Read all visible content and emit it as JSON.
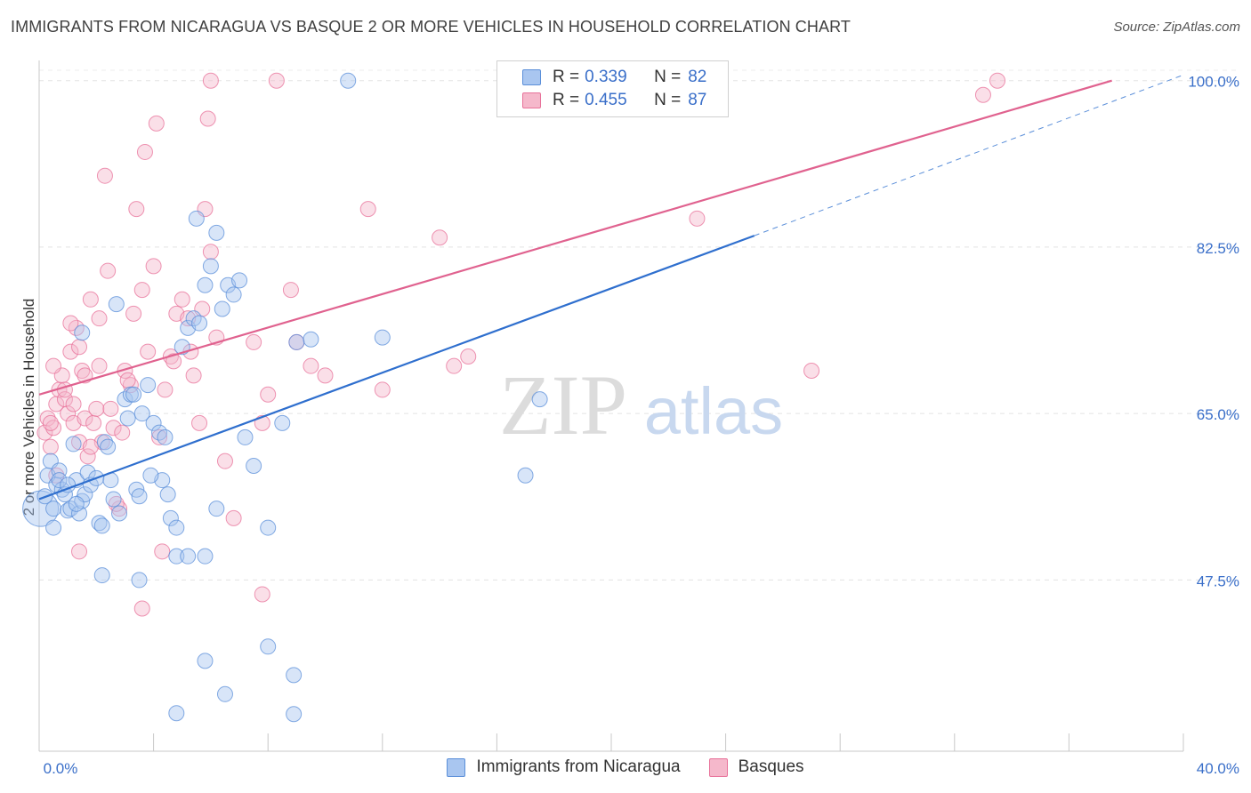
{
  "title": "IMMIGRANTS FROM NICARAGUA VS BASQUE 2 OR MORE VEHICLES IN HOUSEHOLD CORRELATION CHART",
  "source": "Source: ZipAtlas.com",
  "watermark": {
    "zip": "ZIP",
    "atlas": "atlas"
  },
  "legend": {
    "r_label": "R =",
    "n_label": "N =",
    "series": [
      {
        "r": "0.339",
        "n": "82"
      },
      {
        "r": "0.455",
        "n": "87"
      }
    ]
  },
  "chart_data": {
    "type": "scatter",
    "title": "IMMIGRANTS FROM NICARAGUA VS BASQUE 2 OR MORE VEHICLES IN HOUSEHOLD CORRELATION CHART",
    "xlabel": "",
    "ylabel": "2 or more Vehicles in Household",
    "xlim": [
      0,
      40
    ],
    "ylim": [
      29.5,
      101.0
    ],
    "x_tick_labels": [
      "0.0%",
      "40.0%"
    ],
    "y_ticks": [
      47.5,
      65.0,
      82.5,
      100.0
    ],
    "y_tick_labels": [
      "47.5%",
      "65.0%",
      "82.5%",
      "100.0%"
    ],
    "legend_position": "top-center",
    "series": [
      {
        "name": "Immigrants from Nicaragua",
        "color": "#5b8fd9",
        "fill": "#a9c6f0",
        "trendline": {
          "x": [
            0,
            25.0
          ],
          "y": [
            56.0,
            83.7
          ],
          "dashed_to": {
            "x": 40,
            "y": 100.6
          }
        },
        "points": [
          {
            "x": 0.05,
            "y": 55.0,
            "big": true
          },
          {
            "x": 0.2,
            "y": 56.3
          },
          {
            "x": 0.3,
            "y": 58.5
          },
          {
            "x": 0.4,
            "y": 60.0
          },
          {
            "x": 0.5,
            "y": 55.0
          },
          {
            "x": 0.6,
            "y": 57.5
          },
          {
            "x": 0.7,
            "y": 59.0
          },
          {
            "x": 0.8,
            "y": 57.0
          },
          {
            "x": 0.9,
            "y": 56.5
          },
          {
            "x": 1.0,
            "y": 54.8
          },
          {
            "x": 1.1,
            "y": 55.0
          },
          {
            "x": 1.2,
            "y": 61.8
          },
          {
            "x": 1.3,
            "y": 58.0
          },
          {
            "x": 1.4,
            "y": 54.5
          },
          {
            "x": 1.5,
            "y": 55.8
          },
          {
            "x": 1.6,
            "y": 56.5
          },
          {
            "x": 1.7,
            "y": 58.8
          },
          {
            "x": 1.8,
            "y": 57.5
          },
          {
            "x": 2.0,
            "y": 58.2
          },
          {
            "x": 2.1,
            "y": 53.5
          },
          {
            "x": 2.2,
            "y": 53.2
          },
          {
            "x": 2.3,
            "y": 62.0
          },
          {
            "x": 2.4,
            "y": 61.5
          },
          {
            "x": 2.5,
            "y": 58.0
          },
          {
            "x": 2.6,
            "y": 56.0
          },
          {
            "x": 2.8,
            "y": 54.5
          },
          {
            "x": 3.0,
            "y": 66.5
          },
          {
            "x": 3.1,
            "y": 64.5
          },
          {
            "x": 3.2,
            "y": 67.0
          },
          {
            "x": 3.4,
            "y": 57.0
          },
          {
            "x": 3.5,
            "y": 56.3
          },
          {
            "x": 3.6,
            "y": 65.0
          },
          {
            "x": 3.8,
            "y": 68.0
          },
          {
            "x": 4.0,
            "y": 64.0
          },
          {
            "x": 4.2,
            "y": 63.0
          },
          {
            "x": 4.3,
            "y": 58.0
          },
          {
            "x": 4.5,
            "y": 56.5
          },
          {
            "x": 4.6,
            "y": 54.0
          },
          {
            "x": 4.8,
            "y": 53.0
          },
          {
            "x": 5.0,
            "y": 72.0
          },
          {
            "x": 5.2,
            "y": 74.0
          },
          {
            "x": 5.4,
            "y": 75.0
          },
          {
            "x": 5.6,
            "y": 74.5
          },
          {
            "x": 5.8,
            "y": 78.5
          },
          {
            "x": 6.0,
            "y": 80.5
          },
          {
            "x": 6.2,
            "y": 84.0
          },
          {
            "x": 6.4,
            "y": 76.0
          },
          {
            "x": 6.6,
            "y": 78.5
          },
          {
            "x": 6.8,
            "y": 77.5
          },
          {
            "x": 5.5,
            "y": 85.5
          },
          {
            "x": 7.0,
            "y": 79.0
          },
          {
            "x": 7.2,
            "y": 62.5
          },
          {
            "x": 7.5,
            "y": 59.5
          },
          {
            "x": 8.0,
            "y": 53.0
          },
          {
            "x": 8.5,
            "y": 64.0
          },
          {
            "x": 9.0,
            "y": 72.5
          },
          {
            "x": 9.5,
            "y": 72.8
          },
          {
            "x": 10.8,
            "y": 100.0
          },
          {
            "x": 12.0,
            "y": 73.0
          },
          {
            "x": 17.0,
            "y": 58.5
          },
          {
            "x": 17.5,
            "y": 66.5
          },
          {
            "x": 1.5,
            "y": 73.5
          },
          {
            "x": 2.7,
            "y": 76.5
          },
          {
            "x": 3.3,
            "y": 67.0
          },
          {
            "x": 4.4,
            "y": 62.5
          },
          {
            "x": 2.2,
            "y": 48.0
          },
          {
            "x": 3.5,
            "y": 47.5
          },
          {
            "x": 4.8,
            "y": 50.0
          },
          {
            "x": 5.2,
            "y": 50.0
          },
          {
            "x": 5.8,
            "y": 50.0
          },
          {
            "x": 5.8,
            "y": 39.0
          },
          {
            "x": 8.0,
            "y": 40.5
          },
          {
            "x": 8.9,
            "y": 37.5
          },
          {
            "x": 6.5,
            "y": 35.5
          },
          {
            "x": 4.8,
            "y": 33.5
          },
          {
            "x": 8.9,
            "y": 33.4
          },
          {
            "x": 0.5,
            "y": 53.0
          },
          {
            "x": 0.7,
            "y": 58.0
          },
          {
            "x": 1.0,
            "y": 57.5
          },
          {
            "x": 1.3,
            "y": 55.5
          },
          {
            "x": 6.2,
            "y": 55.0
          },
          {
            "x": 3.9,
            "y": 58.5
          }
        ]
      },
      {
        "name": "Basques",
        "color": "#e8729a",
        "fill": "#f5b8cb",
        "trendline": {
          "x": [
            0,
            37.5
          ],
          "y": [
            67.0,
            100.0
          ]
        },
        "points": [
          {
            "x": 0.2,
            "y": 63.0
          },
          {
            "x": 0.3,
            "y": 64.5
          },
          {
            "x": 0.4,
            "y": 61.5
          },
          {
            "x": 0.5,
            "y": 63.5
          },
          {
            "x": 0.6,
            "y": 66.0
          },
          {
            "x": 0.7,
            "y": 67.5
          },
          {
            "x": 0.8,
            "y": 69.0
          },
          {
            "x": 0.9,
            "y": 66.5
          },
          {
            "x": 1.0,
            "y": 65.0
          },
          {
            "x": 1.1,
            "y": 71.5
          },
          {
            "x": 1.2,
            "y": 64.0
          },
          {
            "x": 1.3,
            "y": 74.0
          },
          {
            "x": 1.4,
            "y": 72.0
          },
          {
            "x": 1.5,
            "y": 69.5
          },
          {
            "x": 1.6,
            "y": 64.5
          },
          {
            "x": 1.7,
            "y": 60.5
          },
          {
            "x": 1.8,
            "y": 77.0
          },
          {
            "x": 1.9,
            "y": 64.0
          },
          {
            "x": 2.0,
            "y": 65.5
          },
          {
            "x": 2.1,
            "y": 75.0
          },
          {
            "x": 2.2,
            "y": 62.0
          },
          {
            "x": 2.4,
            "y": 80.0
          },
          {
            "x": 2.6,
            "y": 63.5
          },
          {
            "x": 2.8,
            "y": 55.0
          },
          {
            "x": 3.0,
            "y": 69.5
          },
          {
            "x": 3.2,
            "y": 68.0
          },
          {
            "x": 3.4,
            "y": 86.5
          },
          {
            "x": 3.6,
            "y": 78.0
          },
          {
            "x": 3.8,
            "y": 71.5
          },
          {
            "x": 4.0,
            "y": 80.5
          },
          {
            "x": 4.2,
            "y": 62.5
          },
          {
            "x": 4.4,
            "y": 67.5
          },
          {
            "x": 4.6,
            "y": 71.0
          },
          {
            "x": 4.8,
            "y": 75.5
          },
          {
            "x": 5.0,
            "y": 77.0
          },
          {
            "x": 5.2,
            "y": 75.0
          },
          {
            "x": 5.4,
            "y": 69.0
          },
          {
            "x": 5.6,
            "y": 64.0
          },
          {
            "x": 5.8,
            "y": 86.5
          },
          {
            "x": 6.0,
            "y": 82.0
          },
          {
            "x": 6.2,
            "y": 73.0
          },
          {
            "x": 6.5,
            "y": 60.0
          },
          {
            "x": 6.8,
            "y": 54.0
          },
          {
            "x": 7.5,
            "y": 72.5
          },
          {
            "x": 8.0,
            "y": 67.0
          },
          {
            "x": 8.8,
            "y": 78.0
          },
          {
            "x": 9.5,
            "y": 70.0
          },
          {
            "x": 10.0,
            "y": 69.0
          },
          {
            "x": 11.5,
            "y": 86.5
          },
          {
            "x": 12.0,
            "y": 67.5
          },
          {
            "x": 14.0,
            "y": 83.5
          },
          {
            "x": 14.5,
            "y": 70.0
          },
          {
            "x": 15.0,
            "y": 71.0
          },
          {
            "x": 23.0,
            "y": 85.5
          },
          {
            "x": 27.0,
            "y": 69.5
          },
          {
            "x": 33.0,
            "y": 98.5
          },
          {
            "x": 33.5,
            "y": 100.0
          },
          {
            "x": 6.0,
            "y": 100.0
          },
          {
            "x": 8.3,
            "y": 100.0
          },
          {
            "x": 5.9,
            "y": 96.0
          },
          {
            "x": 4.1,
            "y": 95.5
          },
          {
            "x": 3.7,
            "y": 92.5
          },
          {
            "x": 2.3,
            "y": 90.0
          },
          {
            "x": 1.2,
            "y": 66.0
          },
          {
            "x": 0.9,
            "y": 67.5
          },
          {
            "x": 2.5,
            "y": 65.5
          },
          {
            "x": 3.1,
            "y": 68.5
          },
          {
            "x": 0.4,
            "y": 64.0
          },
          {
            "x": 1.4,
            "y": 62.0
          },
          {
            "x": 2.7,
            "y": 55.5
          },
          {
            "x": 1.8,
            "y": 61.5
          },
          {
            "x": 0.6,
            "y": 58.5
          },
          {
            "x": 4.3,
            "y": 50.5
          },
          {
            "x": 3.6,
            "y": 44.5
          },
          {
            "x": 7.8,
            "y": 46.0
          },
          {
            "x": 1.4,
            "y": 50.5
          },
          {
            "x": 7.8,
            "y": 64.0
          },
          {
            "x": 9.0,
            "y": 72.5
          },
          {
            "x": 5.7,
            "y": 76.0
          },
          {
            "x": 2.1,
            "y": 70.0
          },
          {
            "x": 1.1,
            "y": 74.5
          },
          {
            "x": 0.5,
            "y": 70.0
          },
          {
            "x": 4.7,
            "y": 70.5
          },
          {
            "x": 5.3,
            "y": 71.5
          },
          {
            "x": 3.3,
            "y": 75.5
          },
          {
            "x": 2.9,
            "y": 63.0
          },
          {
            "x": 1.6,
            "y": 69.0
          }
        ]
      }
    ]
  }
}
